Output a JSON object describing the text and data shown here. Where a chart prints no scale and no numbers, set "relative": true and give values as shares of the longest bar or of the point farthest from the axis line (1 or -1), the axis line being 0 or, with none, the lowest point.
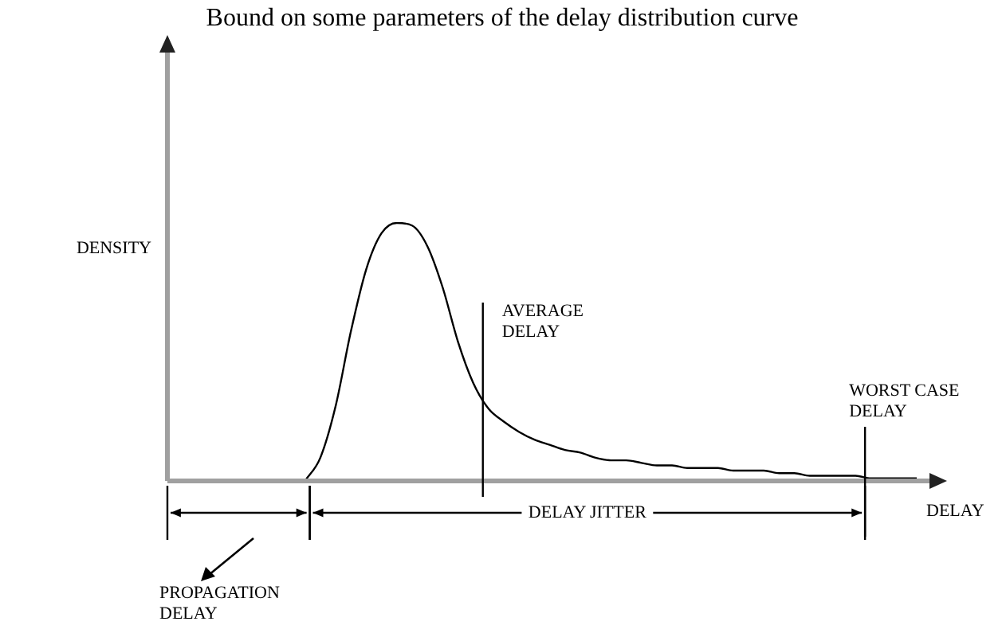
{
  "chart_data": {
    "type": "line",
    "title": "Bound on some parameters of the delay distribution curve",
    "xlabel": "DELAY",
    "ylabel": "DENSITY",
    "relative": true,
    "grid": false,
    "legend": false,
    "marker": "none",
    "categories": [
      null,
      null,
      null,
      null,
      null,
      null,
      null,
      null,
      null,
      null,
      null,
      null,
      null,
      null,
      null,
      null,
      null,
      null,
      null,
      null,
      null,
      null,
      null,
      null,
      null,
      null,
      null,
      null,
      null,
      null,
      null,
      null,
      null,
      null,
      null,
      null,
      null,
      null,
      null,
      null,
      null,
      null,
      null,
      null,
      null,
      null,
      null,
      null,
      null,
      null
    ],
    "series": [
      {
        "color": "#000000",
        "values": [
          null,
          null,
          null,
          null,
          null,
          null,
          null,
          null,
          null,
          0,
          0.09,
          0.29,
          0.58,
          0.82,
          0.96,
          1,
          0.99,
          0.91,
          0.75,
          0.54,
          0.38,
          0.28,
          0.23,
          0.19,
          0.16,
          0.14,
          0.12,
          0.11,
          0.09,
          0.08,
          0.08,
          0.07,
          0.06,
          0.06,
          0.05,
          0.05,
          0.05,
          0.04,
          0.04,
          0.04,
          0.03,
          0.03,
          0.02,
          0.02,
          0.02,
          0.02,
          0.01,
          0.01,
          0.01,
          0.01
        ]
      }
    ],
    "annotations": [
      "AVERAGE DELAY",
      "WORST CASE DELAY",
      "PROPAGATION DELAY",
      "DELAY JITTER"
    ]
  }
}
